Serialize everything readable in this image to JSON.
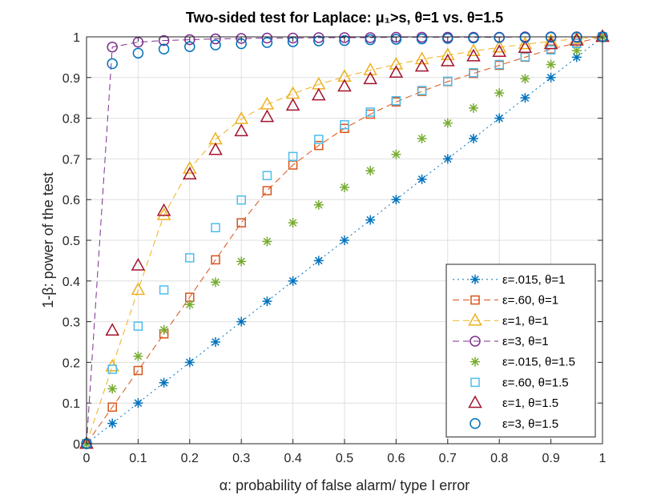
{
  "chart_data": {
    "type": "line",
    "title": "Two-sided test for Laplace: μ₁>s, θ=1 vs. θ=1.5",
    "xlabel": "α: probability of false alarm/ type I error",
    "ylabel": "1-β: power of the test",
    "xlim": [
      0,
      1
    ],
    "ylim": [
      0,
      1
    ],
    "grid": true,
    "legend_position": "bottom-right",
    "xticks": [
      0,
      0.1,
      0.2,
      0.3,
      0.4,
      0.5,
      0.6,
      0.7,
      0.8,
      0.9,
      1
    ],
    "xtick_labels": [
      "0",
      "0.1",
      "0.2",
      "0.3",
      "0.4",
      "0.5",
      "0.6",
      "0.7",
      "0.8",
      "0.9",
      "1"
    ],
    "yticks": [
      0,
      0.1,
      0.2,
      0.3,
      0.4,
      0.5,
      0.6,
      0.7,
      0.8,
      0.9,
      1
    ],
    "ytick_labels": [
      "0",
      "0.1",
      "0.2",
      "0.3",
      "0.4",
      "0.5",
      "0.6",
      "0.7",
      "0.8",
      "0.9",
      "1"
    ],
    "x": [
      0,
      0.05,
      0.1,
      0.15,
      0.2,
      0.25,
      0.3,
      0.35,
      0.4,
      0.45,
      0.5,
      0.55,
      0.6,
      0.65,
      0.7,
      0.75,
      0.8,
      0.85,
      0.9,
      0.95,
      1
    ],
    "series": [
      {
        "name": "ε=.015, θ=1",
        "color": "#0072BD",
        "marker": "asterisk",
        "line": "dotted",
        "values": [
          0,
          0.05,
          0.1,
          0.15,
          0.2,
          0.25,
          0.3,
          0.35,
          0.4,
          0.45,
          0.5,
          0.55,
          0.6,
          0.65,
          0.7,
          0.75,
          0.8,
          0.85,
          0.9,
          0.95,
          1
        ]
      },
      {
        "name": "ε=.60, θ=1",
        "color": "#D95319",
        "marker": "square",
        "line": "dashed",
        "values": [
          0,
          0.09,
          0.18,
          0.27,
          0.36,
          0.452,
          0.543,
          0.622,
          0.685,
          0.733,
          0.775,
          0.81,
          0.84,
          0.866,
          0.89,
          0.91,
          0.93,
          0.95,
          0.97,
          0.985,
          1
        ]
      },
      {
        "name": "ε=1, θ=1",
        "color": "#EDB120",
        "marker": "triangle",
        "line": "dashed",
        "values": [
          0,
          0.19,
          0.378,
          0.562,
          0.676,
          0.748,
          0.798,
          0.834,
          0.86,
          0.883,
          0.902,
          0.918,
          0.932,
          0.945,
          0.955,
          0.965,
          0.974,
          0.982,
          0.989,
          0.995,
          1
        ]
      },
      {
        "name": "ε=3, θ=1",
        "color": "#7E2F8E",
        "marker": "circle",
        "line": "dashed",
        "values": [
          0,
          0.975,
          0.987,
          0.991,
          0.993,
          0.995,
          0.996,
          0.997,
          0.997,
          0.998,
          0.998,
          0.998,
          0.999,
          0.999,
          0.999,
          0.999,
          0.999,
          1,
          1,
          1,
          1
        ]
      },
      {
        "name": "ε=.015, θ=1.5",
        "color": "#77AC30",
        "marker": "asterisk",
        "line": "none",
        "values": [
          0,
          0.135,
          0.215,
          0.28,
          0.342,
          0.397,
          0.448,
          0.497,
          0.543,
          0.587,
          0.63,
          0.671,
          0.711,
          0.75,
          0.788,
          0.825,
          0.862,
          0.897,
          0.932,
          0.966,
          1
        ]
      },
      {
        "name": "ε=.60, θ=1.5",
        "color": "#4DBEEE",
        "marker": "square",
        "line": "none",
        "values": [
          0,
          0.183,
          0.289,
          0.378,
          0.457,
          0.531,
          0.599,
          0.659,
          0.706,
          0.748,
          0.784,
          0.815,
          0.843,
          0.868,
          0.891,
          0.912,
          0.932,
          0.951,
          0.968,
          0.984,
          1
        ]
      },
      {
        "name": "ε=1, θ=1.5",
        "color": "#A2142F",
        "marker": "triangle",
        "line": "none",
        "values": [
          0,
          0.278,
          0.438,
          0.572,
          0.662,
          0.722,
          0.768,
          0.803,
          0.831,
          0.856,
          0.878,
          0.896,
          0.912,
          0.927,
          0.94,
          0.952,
          0.963,
          0.973,
          0.982,
          0.991,
          1
        ]
      },
      {
        "name": "ε=3, θ=1.5",
        "color": "#0072BD",
        "marker": "circle",
        "line": "none",
        "values": [
          0,
          0.934,
          0.96,
          0.97,
          0.976,
          0.98,
          0.983,
          0.986,
          0.988,
          0.99,
          0.991,
          0.993,
          0.994,
          0.995,
          0.996,
          0.997,
          0.998,
          0.998,
          0.999,
          0.999,
          1
        ]
      }
    ]
  }
}
